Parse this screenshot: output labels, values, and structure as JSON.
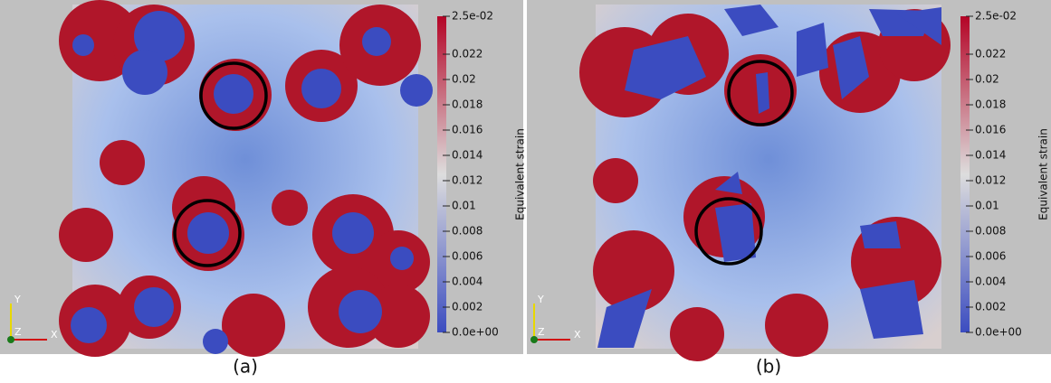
{
  "panels": [
    {
      "label": "(a)",
      "triad": [
        "Y",
        "Z",
        "X"
      ],
      "colorbar": {
        "title": "Equivalent strain",
        "vlim": [
          0,
          0.025
        ],
        "ticks": [
          {
            "value": 0.025,
            "label": "2.5e-02"
          },
          0.022,
          {
            "value": 0.02,
            "label": "0.02"
          },
          0.018,
          0.016,
          0.014,
          0.012,
          {
            "value": 0.01,
            "label": "0.01"
          },
          0.008,
          0.006,
          0.004,
          0.002,
          {
            "value": 0,
            "label": "0.0e+00"
          }
        ]
      }
    },
    {
      "label": "(b)",
      "triad": [
        "Y",
        "Z",
        "X"
      ],
      "colorbar": {
        "title": "Equivalent strain",
        "vlim": [
          0,
          0.025
        ],
        "ticks": [
          {
            "value": 0.025,
            "label": "2.5e-02"
          },
          0.022,
          {
            "value": 0.02,
            "label": "0.02"
          },
          0.018,
          0.016,
          0.014,
          0.012,
          {
            "value": 0.01,
            "label": "0.01"
          },
          0.008,
          0.006,
          0.004,
          0.002,
          {
            "value": 0,
            "label": "0.0e+00"
          }
        ]
      }
    }
  ]
}
